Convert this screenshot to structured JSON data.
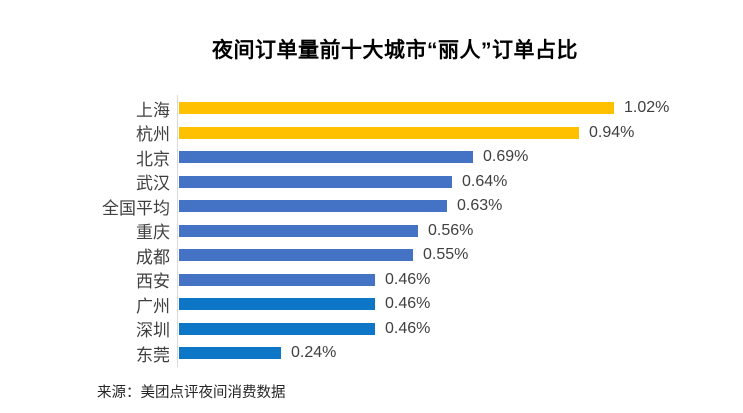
{
  "chart": {
    "title": "夜间订单量前十大城市“丽人”订单占比",
    "source": "来源：美团点评夜间消费数据"
  },
  "chart_data": {
    "type": "bar",
    "orientation": "horizontal",
    "title": "夜间订单量前十大城市“丽人”订单占比",
    "xlabel": "",
    "ylabel": "",
    "xlim": [
      0,
      1.1
    ],
    "grid": false,
    "legend": false,
    "value_label_position": "end-of-bar",
    "categories": [
      "上海",
      "杭州",
      "北京",
      "武汉",
      "全国平均",
      "重庆",
      "成都",
      "西安",
      "广州",
      "深圳",
      "东莞"
    ],
    "values": [
      1.02,
      0.94,
      0.69,
      0.64,
      0.63,
      0.56,
      0.55,
      0.46,
      0.46,
      0.46,
      0.24
    ],
    "value_labels": [
      "1.02%",
      "0.94%",
      "0.69%",
      "0.64%",
      "0.63%",
      "0.56%",
      "0.55%",
      "0.46%",
      "0.46%",
      "0.46%",
      "0.24%"
    ],
    "bar_colors": [
      "#FFC000",
      "#FFC000",
      "#4472C4",
      "#4472C4",
      "#4472C4",
      "#4472C4",
      "#4472C4",
      "#4472C4",
      "#0D76C7",
      "#0D76C7",
      "#0D76C7"
    ],
    "palette": {
      "highlight_gold": "#FFC000",
      "medium_blue": "#4472C4",
      "bright_blue": "#0D76C7",
      "axis_line": "#D9D9D9",
      "label_text": "#404040"
    },
    "source": "来源：美团点评夜间消费数据"
  }
}
